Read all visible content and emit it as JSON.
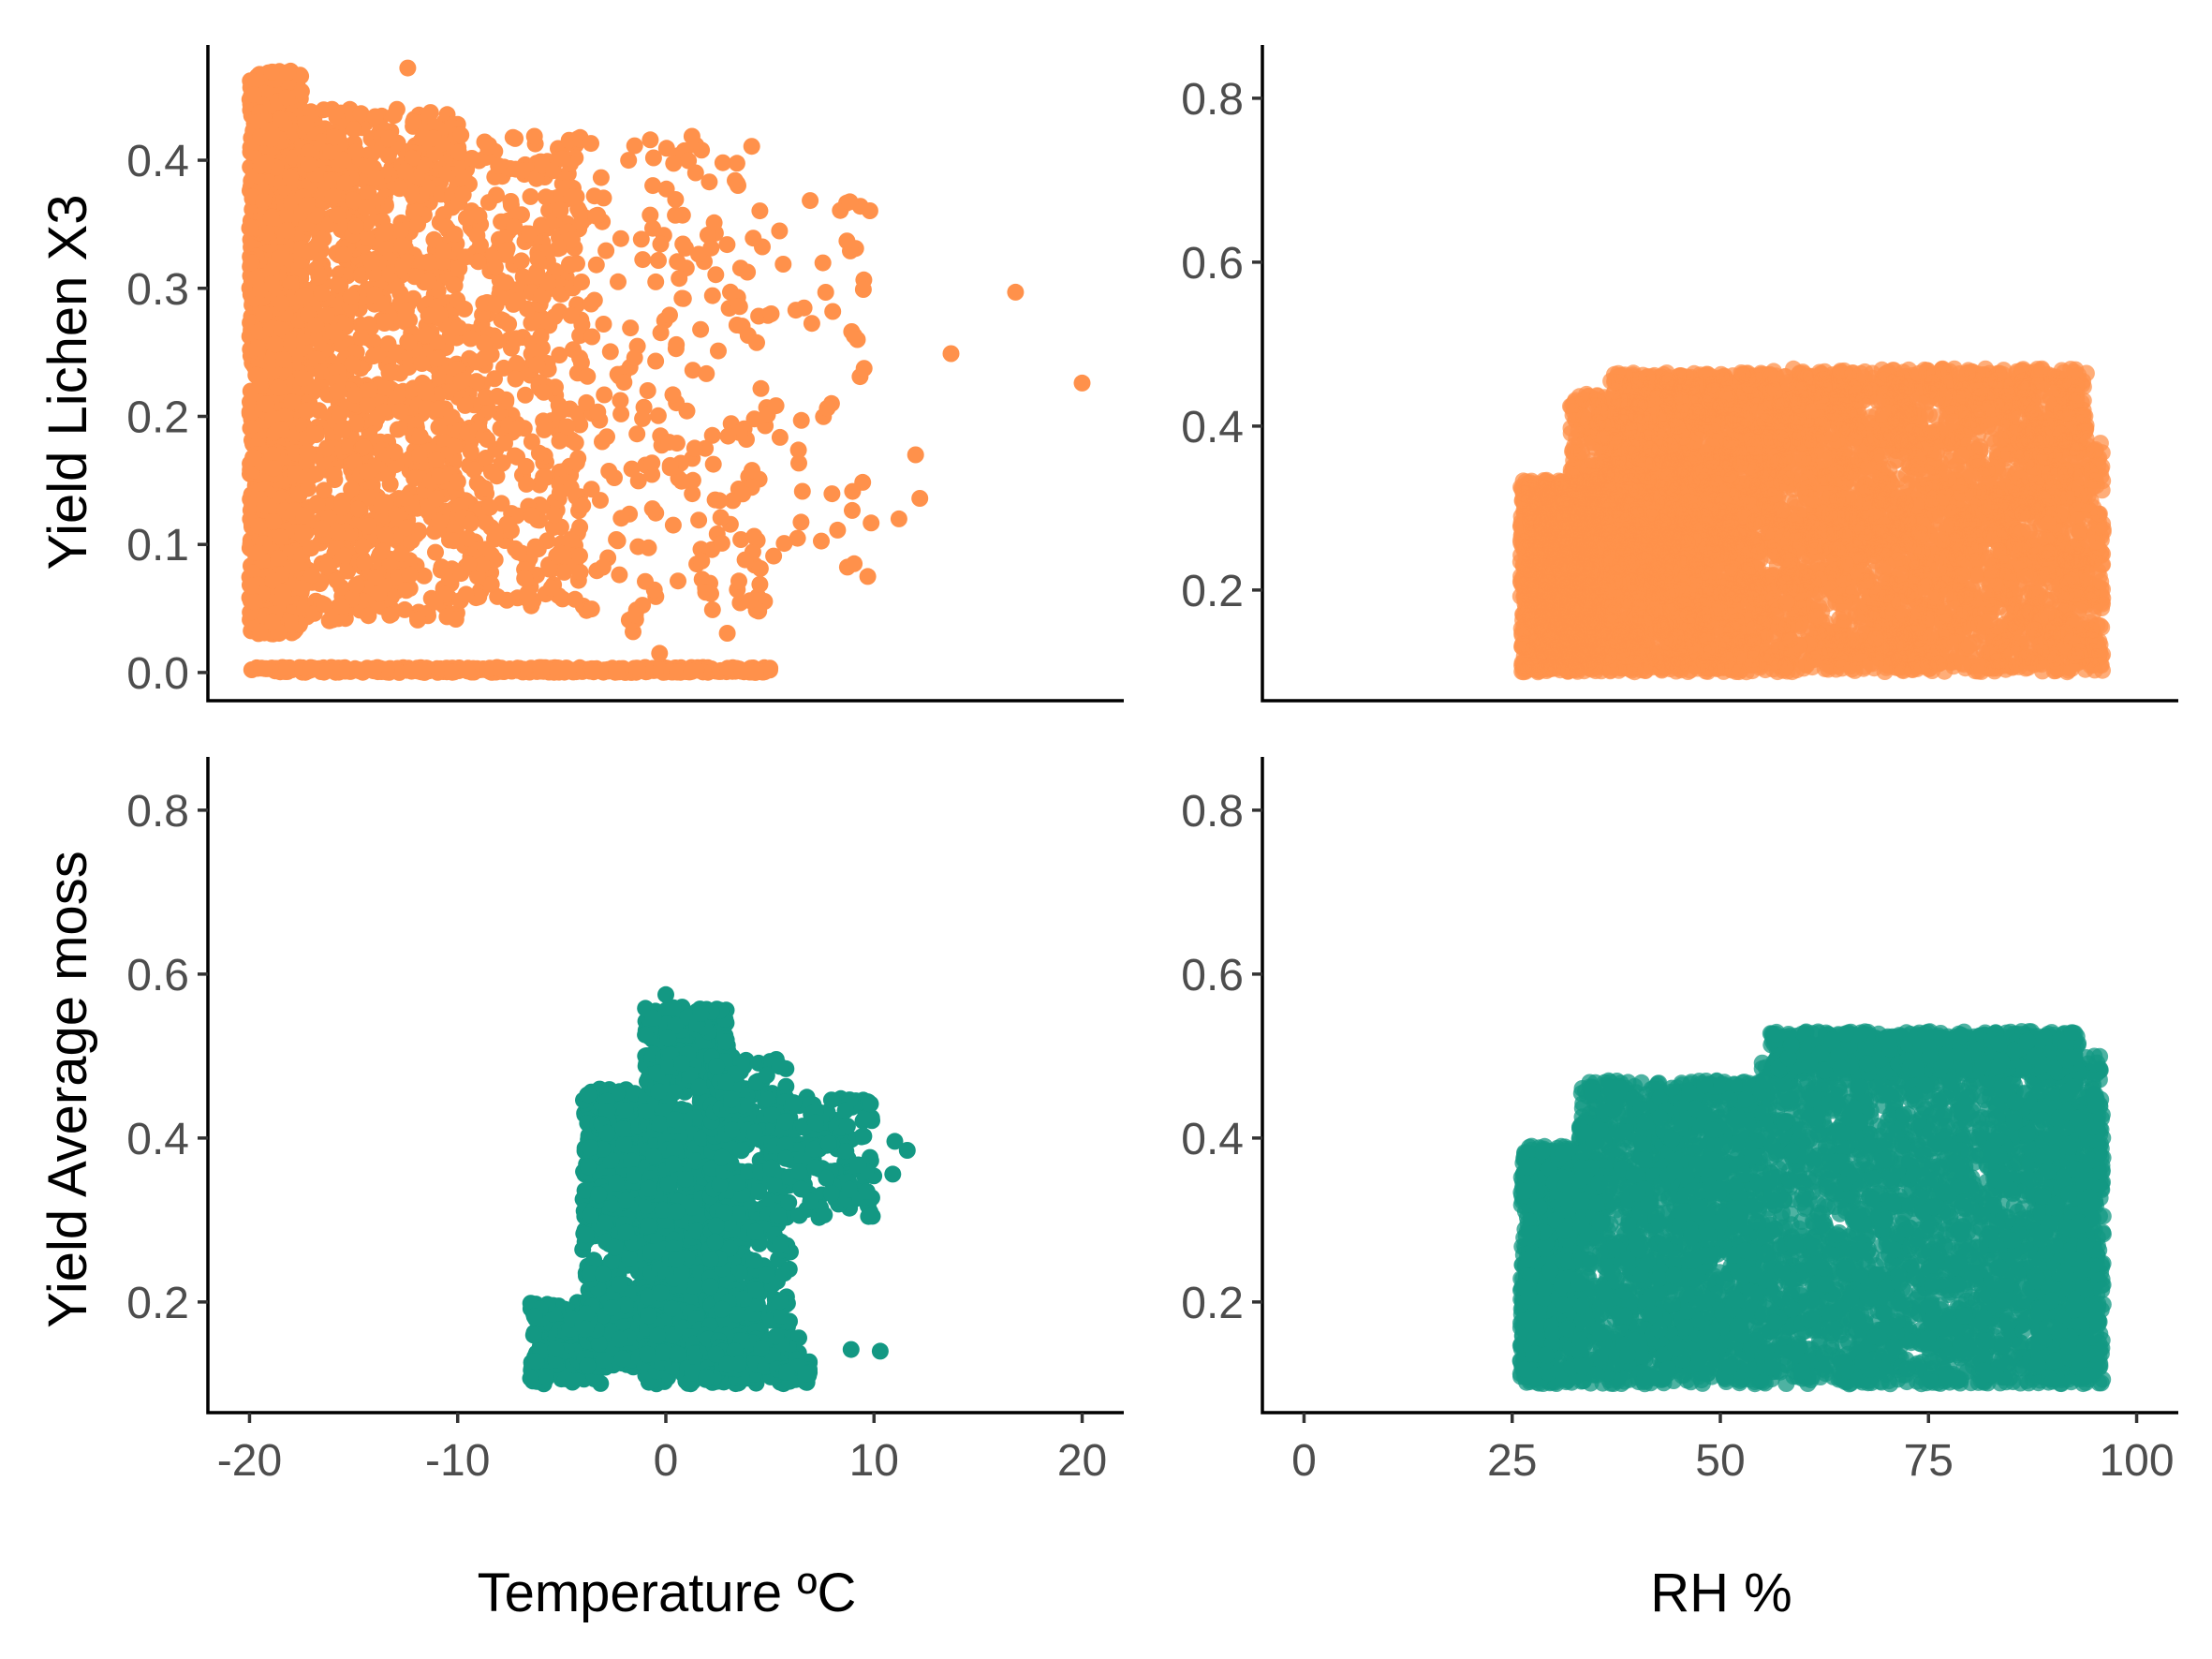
{
  "colors": {
    "lichen": "#FF914B",
    "moss": "#139883",
    "axis": "#000000",
    "tick_text": "#4d4d4d"
  },
  "chart_data": [
    {
      "id": "lichen-temperature",
      "type": "scatter",
      "row": "top",
      "col": "left",
      "color_key": "lichen",
      "opacity": 1.0,
      "xlabel": "",
      "ylabel": "Yield Lichen X3",
      "xlim": [
        -22,
        22
      ],
      "ylim": [
        -0.022,
        0.49
      ],
      "xticks": [],
      "yticks": [
        0.0,
        0.1,
        0.2,
        0.3,
        0.4
      ],
      "ytick_labels": [
        "0.0",
        "0.1",
        "0.2",
        "0.3",
        "0.4"
      ],
      "cloud": [
        {
          "x": [
            -20,
            -17.5
          ],
          "y": [
            0.03,
            0.47
          ],
          "n": 1600
        },
        {
          "x": [
            -17.5,
            -10
          ],
          "y": [
            0.04,
            0.44
          ],
          "n": 1100
        },
        {
          "x": [
            -10,
            -4
          ],
          "y": [
            0.05,
            0.42
          ],
          "n": 450
        },
        {
          "x": [
            -4,
            5
          ],
          "y": [
            0.03,
            0.42
          ],
          "n": 220
        },
        {
          "x": [
            5,
            10
          ],
          "y": [
            0.07,
            0.38
          ],
          "n": 45
        },
        {
          "x": [
            -20,
            5
          ],
          "y": [
            0.0,
            0.004
          ],
          "n": 400
        }
      ],
      "points": [
        {
          "x": 16.8,
          "y": 0.297
        },
        {
          "x": 20.0,
          "y": 0.226
        },
        {
          "x": 13.7,
          "y": 0.249
        },
        {
          "x": 12.0,
          "y": 0.17
        },
        {
          "x": 12.2,
          "y": 0.136
        },
        {
          "x": 11.2,
          "y": 0.12
        },
        {
          "x": 9.7,
          "y": 0.075
        },
        {
          "x": 9.2,
          "y": 0.26
        },
        {
          "x": 8.7,
          "y": 0.337
        },
        {
          "x": -12.4,
          "y": 0.472
        },
        {
          "x": 4.3,
          "y": 0.0
        },
        {
          "x": -0.3,
          "y": 0.015
        }
      ]
    },
    {
      "id": "lichen-rh",
      "type": "scatter",
      "row": "top",
      "col": "right",
      "color_key": "lichen",
      "opacity": 0.75,
      "xlabel": "",
      "ylabel": "",
      "xlim": [
        -5,
        105
      ],
      "ylim": [
        0.065,
        0.865
      ],
      "xticks": [],
      "yticks": [
        0.2,
        0.4,
        0.6,
        0.8
      ],
      "ytick_labels": [
        "0.2",
        "0.4",
        "0.6",
        "0.8"
      ],
      "cloud": [
        {
          "x": [
            26,
            36
          ],
          "y": [
            0.1,
            0.335
          ],
          "n": 1400
        },
        {
          "x": [
            36,
            56
          ],
          "y": [
            0.1,
            0.37
          ],
          "n": 1800
        },
        {
          "x": [
            56,
            96
          ],
          "y": [
            0.1,
            0.38
          ],
          "n": 2600
        },
        {
          "x": [
            36.5,
            56
          ],
          "y": [
            0.37,
            0.465
          ],
          "n": 550
        },
        {
          "x": [
            56,
            94
          ],
          "y": [
            0.38,
            0.47
          ],
          "n": 900
        },
        {
          "x": [
            32,
            36.5
          ],
          "y": [
            0.33,
            0.44
          ],
          "n": 120
        }
      ],
      "points": []
    },
    {
      "id": "moss-temperature",
      "type": "scatter",
      "row": "bottom",
      "col": "left",
      "color_key": "moss",
      "opacity": 1.0,
      "xlabel": "Temperature ºC",
      "ylabel": "Yield Average moss",
      "xlim": [
        -22,
        22
      ],
      "ylim": [
        0.065,
        0.865
      ],
      "xticks": [
        -20,
        -10,
        0,
        10,
        20
      ],
      "xtick_labels": [
        "-20",
        "-10",
        "0",
        "10",
        "20"
      ],
      "yticks": [
        0.2,
        0.4,
        0.6,
        0.8
      ],
      "ytick_labels": [
        "0.2",
        "0.4",
        "0.6",
        "0.8"
      ],
      "cloud": [
        {
          "x": [
            -6.5,
            -3
          ],
          "y": [
            0.1,
            0.2
          ],
          "n": 220
        },
        {
          "x": [
            -4,
            0
          ],
          "y": [
            0.12,
            0.46
          ],
          "n": 700
        },
        {
          "x": [
            -1,
            3
          ],
          "y": [
            0.1,
            0.56
          ],
          "n": 900
        },
        {
          "x": [
            2,
            6
          ],
          "y": [
            0.13,
            0.5
          ],
          "n": 400
        },
        {
          "x": [
            5,
            10
          ],
          "y": [
            0.3,
            0.45
          ],
          "n": 180
        },
        {
          "x": [
            1,
            7
          ],
          "y": [
            0.1,
            0.16
          ],
          "n": 200
        }
      ],
      "points": [
        {
          "x": 11.6,
          "y": 0.385
        },
        {
          "x": 11.0,
          "y": 0.396
        },
        {
          "x": 10.9,
          "y": 0.356
        },
        {
          "x": 8.9,
          "y": 0.142
        },
        {
          "x": 10.3,
          "y": 0.14
        },
        {
          "x": 0.0,
          "y": 0.575
        },
        {
          "x": -6.5,
          "y": 0.107
        }
      ]
    },
    {
      "id": "moss-rh",
      "type": "scatter",
      "row": "bottom",
      "col": "right",
      "color_key": "moss",
      "opacity": 0.75,
      "xlabel": "RH %",
      "ylabel": "",
      "xlim": [
        -5,
        105
      ],
      "ylim": [
        0.065,
        0.865
      ],
      "xticks": [
        0,
        25,
        50,
        75,
        100
      ],
      "xtick_labels": [
        "0",
        "25",
        "50",
        "75",
        "100"
      ],
      "yticks": [
        0.2,
        0.4,
        0.6,
        0.8
      ],
      "ytick_labels": [
        "0.2",
        "0.4",
        "0.6",
        "0.8"
      ],
      "cloud": [
        {
          "x": [
            26,
            33
          ],
          "y": [
            0.1,
            0.39
          ],
          "n": 900
        },
        {
          "x": [
            33,
            55
          ],
          "y": [
            0.1,
            0.47
          ],
          "n": 2000
        },
        {
          "x": [
            55,
            96
          ],
          "y": [
            0.1,
            0.5
          ],
          "n": 3000
        },
        {
          "x": [
            56,
            93
          ],
          "y": [
            0.48,
            0.53
          ],
          "n": 900
        },
        {
          "x": [
            88,
            96
          ],
          "y": [
            0.1,
            0.46
          ],
          "n": 400
        }
      ],
      "points": []
    }
  ]
}
